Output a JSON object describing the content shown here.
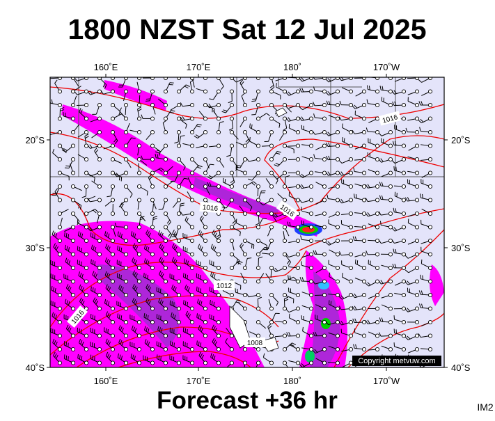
{
  "header": {
    "title": "1800 NZST Sat 12 Jul 2025"
  },
  "map": {
    "lon_labels": [
      "160˚E",
      "170˚E",
      "180˚",
      "170˚W"
    ],
    "lat_labels": [
      "20˚S",
      "30˚S",
      "40˚S"
    ],
    "contour_labels": [
      "1016",
      "1016",
      "1016",
      "1012",
      "1016",
      "1008"
    ],
    "copyright": "Copyright metvuw.com"
  },
  "footer": {
    "forecast": "Forecast +36 hr",
    "code": "IM2"
  }
}
